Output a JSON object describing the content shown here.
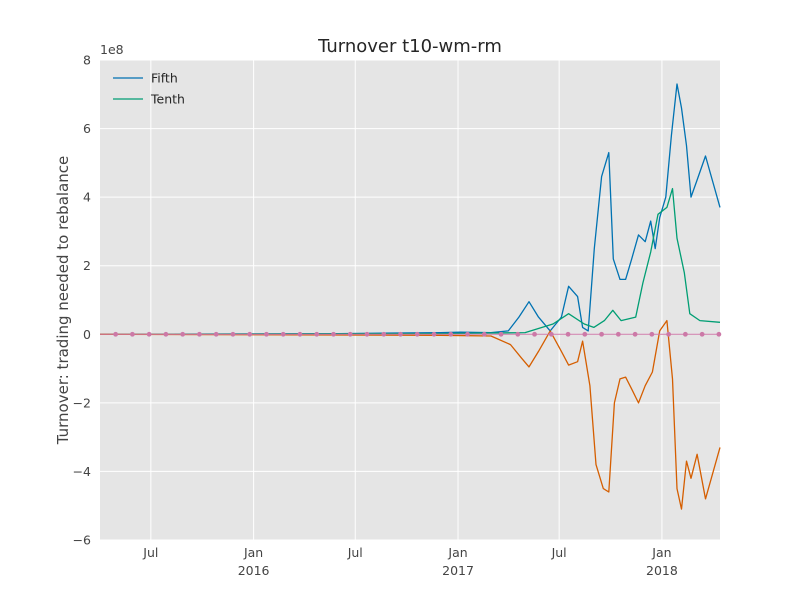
{
  "chart_data": {
    "type": "line",
    "title": "Turnover t10-wm-rm",
    "xlabel": "",
    "ylabel": "Turnover: trading needed to rebalance",
    "y_scale_label": "1e8",
    "ylim": [
      -6,
      8
    ],
    "yticks": [
      -6,
      -4,
      -2,
      0,
      2,
      4,
      6,
      8
    ],
    "ytick_labels": [
      "−6",
      "−4",
      "−2",
      "0",
      "2",
      "4",
      "6",
      "8"
    ],
    "xlim": [
      "2015-04-01",
      "2018-04-15"
    ],
    "xticks": [
      {
        "date": "2015-07-01",
        "label": "Jul",
        "sublabel": ""
      },
      {
        "date": "2016-01-01",
        "label": "Jan",
        "sublabel": "2016"
      },
      {
        "date": "2016-07-01",
        "label": "Jul",
        "sublabel": ""
      },
      {
        "date": "2017-01-01",
        "label": "Jan",
        "sublabel": "2017"
      },
      {
        "date": "2017-07-01",
        "label": "Jul",
        "sublabel": ""
      },
      {
        "date": "2018-01-01",
        "label": "Jan",
        "sublabel": "2018"
      }
    ],
    "grid": true,
    "legend_placement": "top-left",
    "series": [
      {
        "name": "Fifth",
        "color": "#0072b2",
        "points": [
          [
            "2015-04-01",
            0
          ],
          [
            "2016-06-01",
            0.02
          ],
          [
            "2016-12-01",
            0.05
          ],
          [
            "2017-01-05",
            0.06
          ],
          [
            "2017-03-01",
            0.05
          ],
          [
            "2017-04-01",
            0.1
          ],
          [
            "2017-04-20",
            0.5
          ],
          [
            "2017-05-08",
            0.95
          ],
          [
            "2017-05-25",
            0.5
          ],
          [
            "2017-06-15",
            0.1
          ],
          [
            "2017-07-05",
            0.5
          ],
          [
            "2017-07-18",
            1.4
          ],
          [
            "2017-08-03",
            1.1
          ],
          [
            "2017-08-12",
            0.2
          ],
          [
            "2017-08-22",
            0.1
          ],
          [
            "2017-09-02",
            2.5
          ],
          [
            "2017-09-15",
            4.6
          ],
          [
            "2017-09-28",
            5.3
          ],
          [
            "2017-10-06",
            2.2
          ],
          [
            "2017-10-18",
            1.6
          ],
          [
            "2017-10-28",
            1.6
          ],
          [
            "2017-11-08",
            2.2
          ],
          [
            "2017-11-20",
            2.9
          ],
          [
            "2017-12-02",
            2.7
          ],
          [
            "2017-12-12",
            3.3
          ],
          [
            "2017-12-20",
            2.5
          ],
          [
            "2017-12-28",
            3.4
          ],
          [
            "2018-01-08",
            4.0
          ],
          [
            "2018-01-18",
            5.8
          ],
          [
            "2018-01-28",
            7.3
          ],
          [
            "2018-02-05",
            6.6
          ],
          [
            "2018-02-14",
            5.5
          ],
          [
            "2018-02-22",
            4.0
          ],
          [
            "2018-03-05",
            4.5
          ],
          [
            "2018-03-20",
            5.2
          ],
          [
            "2018-04-15",
            3.7
          ]
        ]
      },
      {
        "name": "Tenth",
        "color": "#009e73",
        "points": [
          [
            "2015-04-01",
            0
          ],
          [
            "2016-12-01",
            0.02
          ],
          [
            "2017-05-01",
            0.05
          ],
          [
            "2017-06-20",
            0.3
          ],
          [
            "2017-07-18",
            0.6
          ],
          [
            "2017-08-15",
            0.3
          ],
          [
            "2017-09-01",
            0.2
          ],
          [
            "2017-09-20",
            0.4
          ],
          [
            "2017-10-05",
            0.7
          ],
          [
            "2017-10-20",
            0.4
          ],
          [
            "2017-11-15",
            0.5
          ],
          [
            "2017-11-28",
            1.5
          ],
          [
            "2017-12-12",
            2.4
          ],
          [
            "2017-12-25",
            3.5
          ],
          [
            "2018-01-10",
            3.7
          ],
          [
            "2018-01-20",
            4.25
          ],
          [
            "2018-01-28",
            2.8
          ],
          [
            "2018-02-10",
            1.8
          ],
          [
            "2018-02-20",
            0.6
          ],
          [
            "2018-03-10",
            0.4
          ],
          [
            "2018-04-15",
            0.35
          ]
        ]
      },
      {
        "name": "",
        "color": "#d55e00",
        "points": [
          [
            "2015-04-01",
            0
          ],
          [
            "2016-12-01",
            -0.03
          ],
          [
            "2017-03-01",
            -0.05
          ],
          [
            "2017-04-05",
            -0.3
          ],
          [
            "2017-04-25",
            -0.7
          ],
          [
            "2017-05-08",
            -0.95
          ],
          [
            "2017-05-25",
            -0.5
          ],
          [
            "2017-06-15",
            0.1
          ],
          [
            "2017-07-05",
            -0.5
          ],
          [
            "2017-07-18",
            -0.9
          ],
          [
            "2017-08-03",
            -0.8
          ],
          [
            "2017-08-12",
            -0.2
          ],
          [
            "2017-08-25",
            -1.5
          ],
          [
            "2017-09-05",
            -3.8
          ],
          [
            "2017-09-18",
            -4.5
          ],
          [
            "2017-09-28",
            -4.6
          ],
          [
            "2017-10-08",
            -2.0
          ],
          [
            "2017-10-18",
            -1.3
          ],
          [
            "2017-10-28",
            -1.25
          ],
          [
            "2017-11-08",
            -1.6
          ],
          [
            "2017-11-20",
            -2.0
          ],
          [
            "2017-12-02",
            -1.5
          ],
          [
            "2017-12-15",
            -1.1
          ],
          [
            "2017-12-28",
            0.1
          ],
          [
            "2018-01-10",
            0.4
          ],
          [
            "2018-01-20",
            -1.3
          ],
          [
            "2018-01-28",
            -4.5
          ],
          [
            "2018-02-05",
            -5.1
          ],
          [
            "2018-02-14",
            -3.7
          ],
          [
            "2018-02-22",
            -4.2
          ],
          [
            "2018-03-05",
            -3.5
          ],
          [
            "2018-03-20",
            -4.8
          ],
          [
            "2018-04-15",
            -3.3
          ]
        ]
      },
      {
        "name": "",
        "color": "#cc79a7",
        "style": "dotted-markers",
        "marker_every_days": 30,
        "points": [
          [
            "2015-04-01",
            0
          ],
          [
            "2018-04-15",
            0
          ]
        ]
      }
    ]
  }
}
